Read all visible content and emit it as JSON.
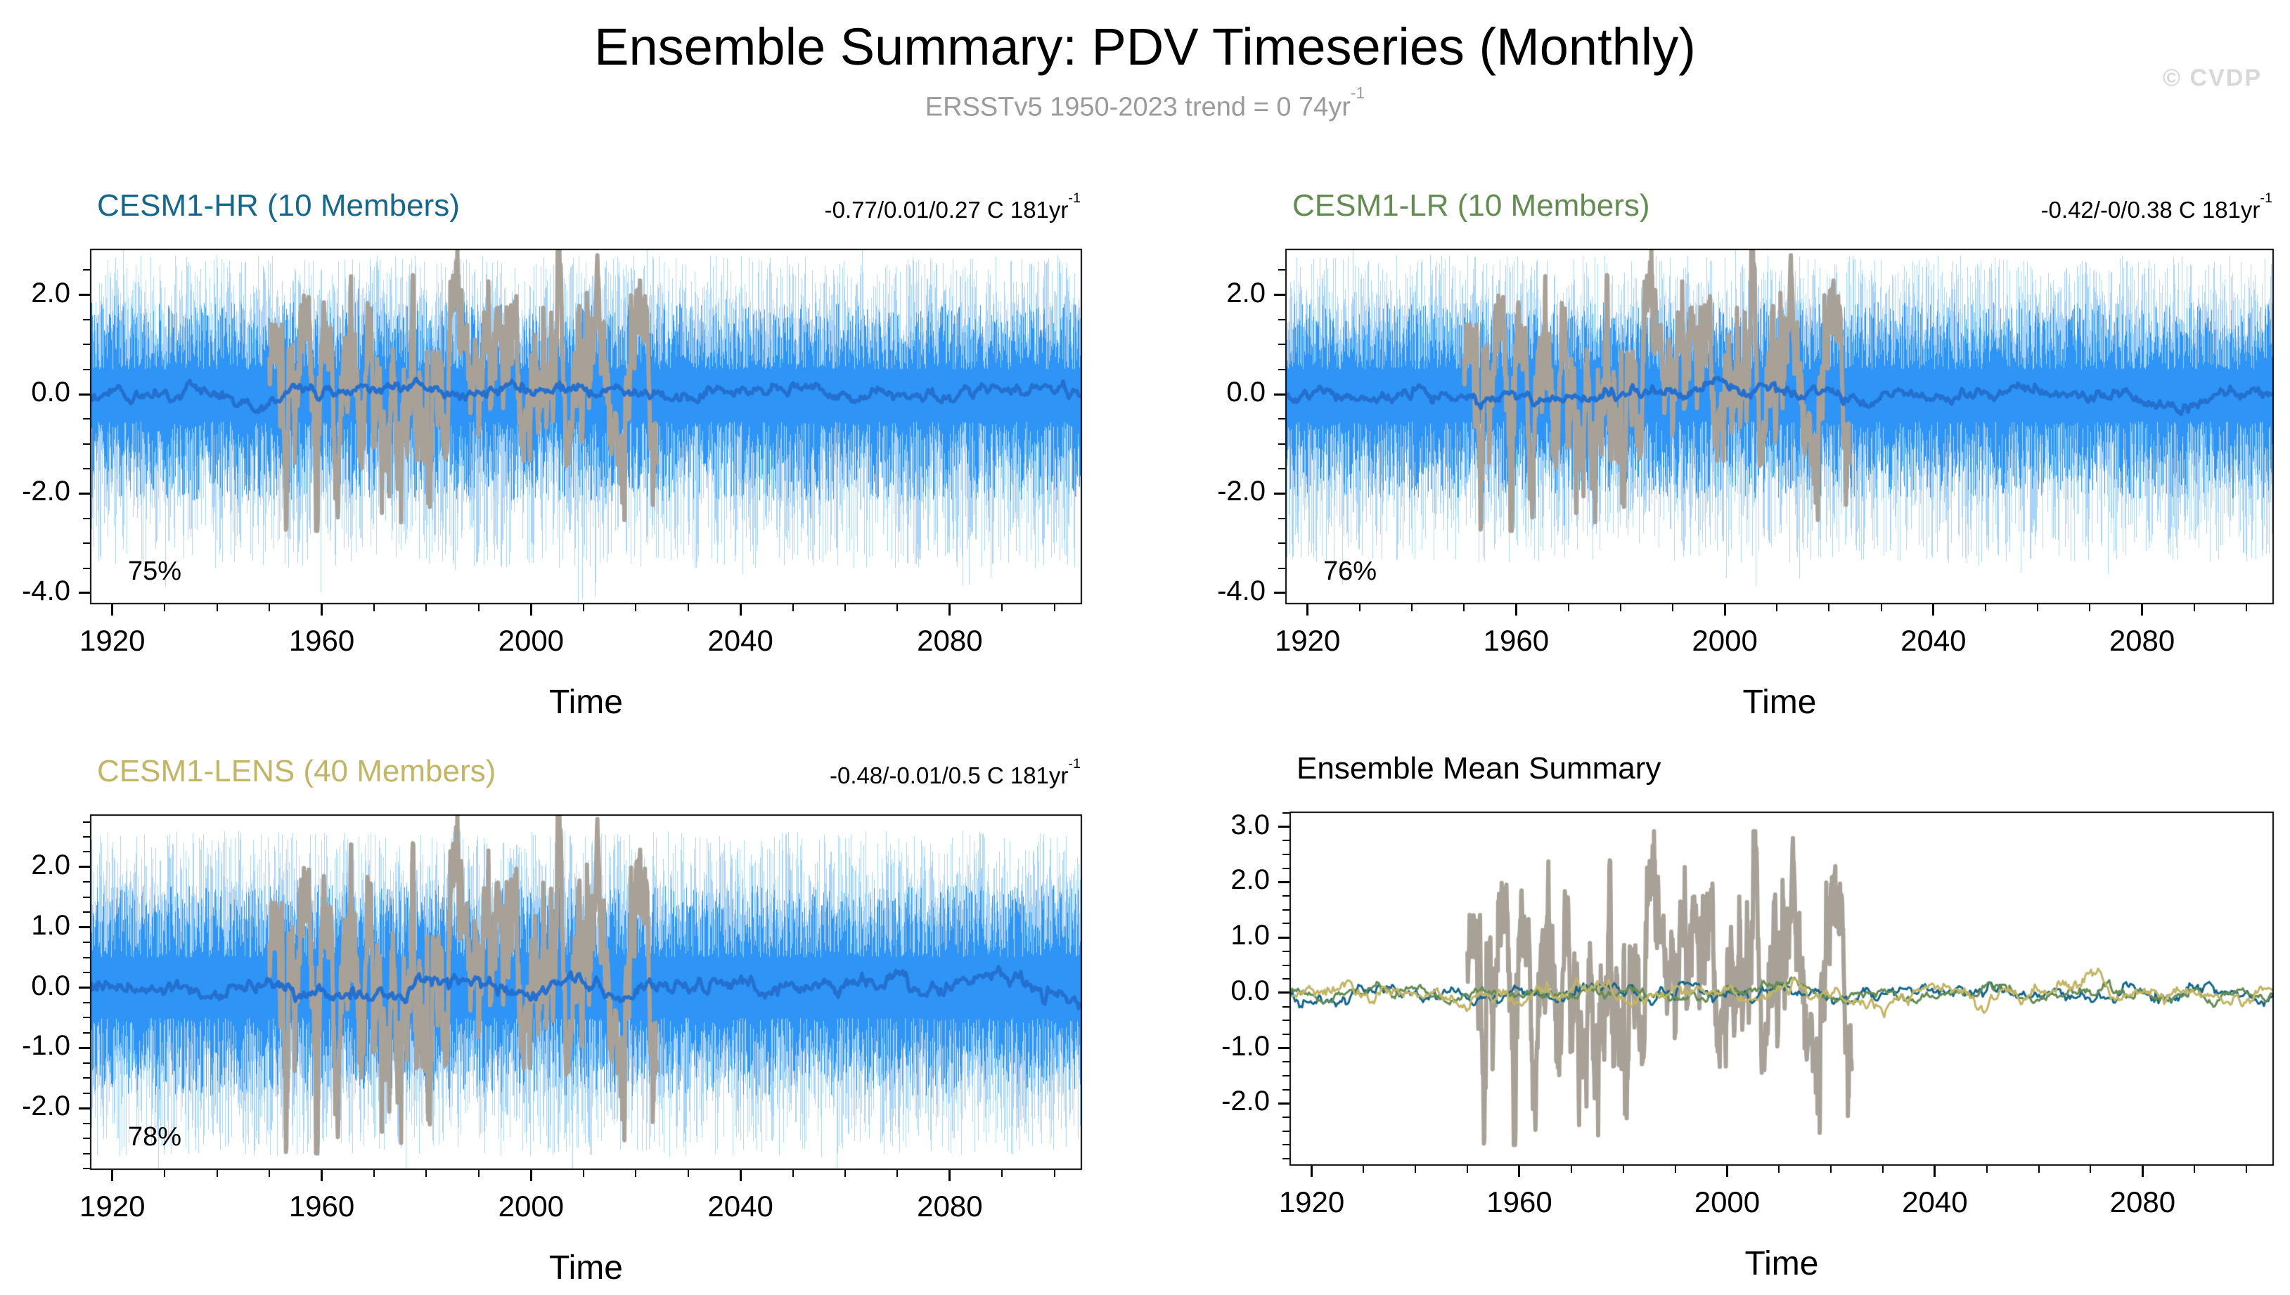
{
  "header": {
    "title": "Ensemble Summary: PDV Timeseries (Monthly)",
    "subtitle_text": "ERSSTv5 1950-2023 trend = 0 74yr",
    "subtitle_sup": "-1",
    "watermark": "© CVDP"
  },
  "colors": {
    "member_envelope_blue": "#A9D3F7",
    "member_core_blue": "#2E94F6",
    "ensemble_mean_blue": "#2470CF",
    "observations_gray": "#A8A198",
    "cesm1_hr_teal": "#17678A",
    "cesm1_lr_green": "#648C52",
    "cesm1_lens_khaki": "#C3B566"
  },
  "chart_data": [
    {
      "type": "line",
      "panel": "top-left",
      "title": "CESM1-HR (10 Members)",
      "title_color": "#17678A",
      "trend_label": "-0.77/0.01/0.27 C 181yr",
      "trend_sup": "-1",
      "agreement_pct": "75%",
      "xlabel": "Time",
      "xlim": [
        1916,
        2105
      ],
      "x_ticks": [
        1920,
        1960,
        2000,
        2040,
        2080
      ],
      "x_tick_labels": [
        "1920",
        "1960",
        "2000",
        "2040",
        "2080"
      ],
      "x_minor_step": 10,
      "ylim": [
        -4.2,
        2.9
      ],
      "y_ticks": [
        2.0,
        0.0,
        -2.0,
        -4.0
      ],
      "y_tick_labels": [
        "2.0",
        "0.0",
        "-2.0",
        "-4.0"
      ],
      "y_minor_step": 0.5,
      "seed": 101,
      "series": [
        {
          "name": "member-spread-envelope",
          "kind": "noise-band",
          "color": "#A9D3F7",
          "top": [
            1.0,
            1.8
          ],
          "bottom": [
            1.0,
            2.5
          ],
          "spike": [
            0.035,
            0.9
          ],
          "x_range": [
            1920,
            2100
          ]
        },
        {
          "name": "member-spread-core",
          "kind": "noise-band",
          "color": "#2E94F6",
          "top": [
            0.5,
            1.35
          ],
          "bottom": [
            0.55,
            1.6
          ],
          "spike": [
            0.02,
            0.6
          ],
          "x_range": [
            1920,
            2100
          ]
        },
        {
          "name": "ersstv5-observations",
          "kind": "obs-line",
          "color": "#A8A198",
          "width": 6,
          "x_range": [
            1950,
            2024
          ],
          "value_range": [
            -2.7,
            2.9
          ]
        },
        {
          "name": "ensemble-mean",
          "kind": "mean-line",
          "color": "#2470CF",
          "width": 5,
          "amplitude": 0.05,
          "x_range": [
            1920,
            2100
          ]
        }
      ]
    },
    {
      "type": "line",
      "panel": "top-right",
      "title": "CESM1-LR (10 Members)",
      "title_color": "#648C52",
      "trend_label": "-0.42/-0/0.38 C 181yr",
      "trend_sup": "-1",
      "agreement_pct": "76%",
      "xlabel": "Time",
      "xlim": [
        1916,
        2105
      ],
      "x_ticks": [
        1920,
        1960,
        2000,
        2040,
        2080
      ],
      "x_tick_labels": [
        "1920",
        "1960",
        "2000",
        "2040",
        "2080"
      ],
      "x_minor_step": 10,
      "ylim": [
        -4.2,
        2.9
      ],
      "y_ticks": [
        2.0,
        0.0,
        -2.0,
        -4.0
      ],
      "y_tick_labels": [
        "2.0",
        "0.0",
        "-2.0",
        "-4.0"
      ],
      "y_minor_step": 0.5,
      "seed": 202,
      "series": [
        {
          "name": "member-spread-envelope",
          "kind": "noise-band",
          "color": "#A9D3F7",
          "top": [
            1.0,
            1.8
          ],
          "bottom": [
            1.0,
            2.4
          ],
          "spike": [
            0.035,
            0.9
          ],
          "x_range": [
            1920,
            2100
          ]
        },
        {
          "name": "member-spread-core",
          "kind": "noise-band",
          "color": "#2E94F6",
          "top": [
            0.5,
            1.35
          ],
          "bottom": [
            0.55,
            1.55
          ],
          "spike": [
            0.02,
            0.6
          ],
          "x_range": [
            1920,
            2100
          ]
        },
        {
          "name": "ersstv5-observations",
          "kind": "obs-line",
          "color": "#A8A198",
          "width": 6,
          "x_range": [
            1950,
            2024
          ],
          "value_range": [
            -2.7,
            2.9
          ]
        },
        {
          "name": "ensemble-mean",
          "kind": "mean-line",
          "color": "#2470CF",
          "width": 5,
          "amplitude": 0.05,
          "x_range": [
            1920,
            2100
          ]
        }
      ]
    },
    {
      "type": "line",
      "panel": "bottom-left",
      "title": "CESM1-LENS (40 Members)",
      "title_color": "#C3B566",
      "trend_label": "-0.48/-0.01/0.5 C 181yr",
      "trend_sup": "-1",
      "agreement_pct": "78%",
      "xlabel": "Time",
      "xlim": [
        1916,
        2105
      ],
      "x_ticks": [
        1920,
        1960,
        2000,
        2040,
        2080
      ],
      "x_tick_labels": [
        "1920",
        "1960",
        "2000",
        "2040",
        "2080"
      ],
      "x_minor_step": 10,
      "ylim": [
        -3.0,
        2.85
      ],
      "y_ticks": [
        2.0,
        1.0,
        0.0,
        -1.0,
        -2.0
      ],
      "y_tick_labels": [
        "2.0",
        "1.0",
        "0.0",
        "-1.0",
        "-2.0"
      ],
      "y_minor_step": 0.25,
      "seed": 303,
      "series": [
        {
          "name": "member-spread-envelope",
          "kind": "noise-band",
          "color": "#A9D3F7",
          "top": [
            1.0,
            1.6
          ],
          "bottom": [
            1.0,
            1.8
          ],
          "spike": [
            0.03,
            0.6
          ],
          "x_range": [
            1920,
            2100
          ]
        },
        {
          "name": "member-spread-core",
          "kind": "noise-band",
          "color": "#2E94F6",
          "top": [
            0.5,
            1.2
          ],
          "bottom": [
            0.5,
            1.3
          ],
          "spike": [
            0.02,
            0.5
          ],
          "x_range": [
            1920,
            2100
          ]
        },
        {
          "name": "ersstv5-observations",
          "kind": "obs-line",
          "color": "#A8A198",
          "width": 6,
          "x_range": [
            1950,
            2024
          ],
          "value_range": [
            -2.7,
            2.9
          ]
        },
        {
          "name": "ensemble-mean",
          "kind": "mean-line",
          "color": "#2470CF",
          "width": 5,
          "amplitude": 0.05,
          "x_range": [
            1920,
            2100
          ]
        }
      ]
    },
    {
      "type": "line",
      "panel": "bottom-right",
      "title": "Ensemble Mean Summary",
      "title_color": "#000000",
      "xlabel": "Time",
      "xlim": [
        1916,
        2105
      ],
      "x_ticks": [
        1920,
        1960,
        2000,
        2040,
        2080
      ],
      "x_tick_labels": [
        "1920",
        "1960",
        "2000",
        "2040",
        "2080"
      ],
      "x_minor_step": 10,
      "ylim": [
        -3.1,
        3.25
      ],
      "y_ticks": [
        3.0,
        2.0,
        1.0,
        0.0,
        -1.0,
        -2.0
      ],
      "y_tick_labels": [
        "3.0",
        "2.0",
        "1.0",
        "0.0",
        "-1.0",
        "-2.0"
      ],
      "y_minor_step": 0.25,
      "seed": 404,
      "series": [
        {
          "name": "ersstv5-observations",
          "kind": "obs-line",
          "color": "#A8A198",
          "width": 6,
          "x_range": [
            1950,
            2024
          ],
          "value_range": [
            -2.7,
            2.9
          ]
        },
        {
          "name": "cesm1-hr-ensemble-mean",
          "kind": "mean-line",
          "color": "#17678A",
          "width": 3,
          "amplitude": 0.045,
          "x_range": [
            1920,
            2100
          ]
        },
        {
          "name": "cesm1-lr-ensemble-mean",
          "kind": "mean-line",
          "color": "#648C52",
          "width": 3,
          "amplitude": 0.04,
          "x_range": [
            1920,
            2100
          ]
        },
        {
          "name": "cesm1-lens-ensemble-mean",
          "kind": "mean-line",
          "color": "#C3B566",
          "width": 3,
          "amplitude": 0.05,
          "x_range": [
            1920,
            2100
          ]
        }
      ]
    }
  ]
}
